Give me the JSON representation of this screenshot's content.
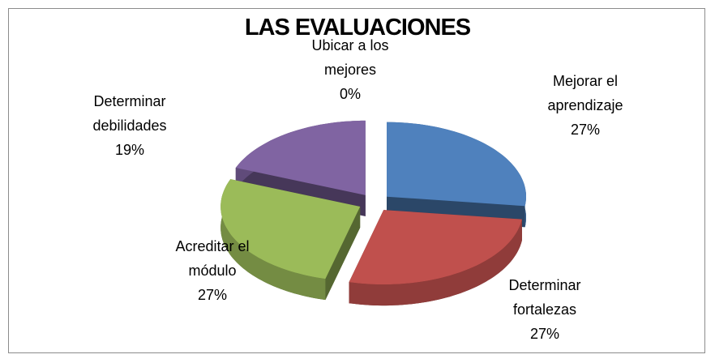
{
  "chart_data": {
    "type": "pie",
    "title": "LAS EVALUACIONES",
    "categories": [
      "Mejorar el aprendizaje",
      "Determinar fortalezas",
      "Acreditar el módulo",
      "Determinar debilidades",
      "Ubicar a los mejores"
    ],
    "values": [
      27,
      27,
      27,
      19,
      0
    ],
    "value_labels": [
      "27%",
      "27%",
      "27%",
      "19%",
      "0%"
    ],
    "colors": [
      "#4f81bd",
      "#c0504d",
      "#9bbb59",
      "#8064a2",
      "#4bacc6"
    ],
    "three_d": true,
    "exploded": true
  }
}
